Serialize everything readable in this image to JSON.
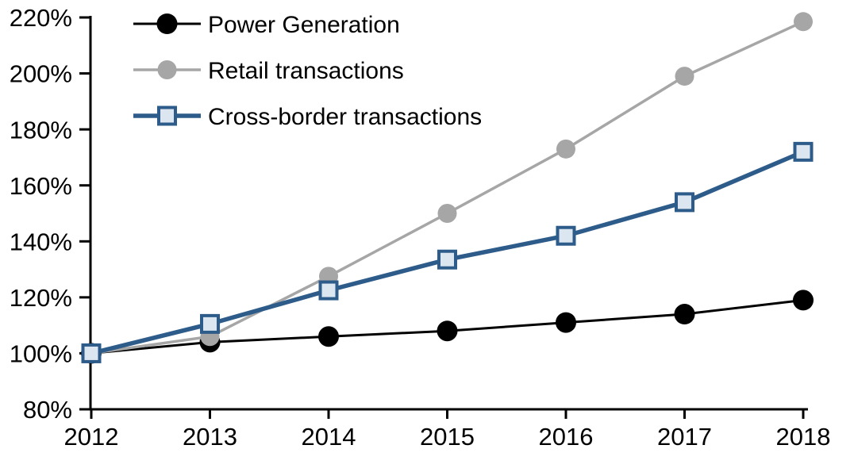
{
  "chart_data": {
    "type": "line",
    "title": "",
    "xlabel": "",
    "ylabel": "",
    "categories": [
      "2012",
      "2013",
      "2014",
      "2015",
      "2016",
      "2017",
      "2018"
    ],
    "series": [
      {
        "name": "Power Generation",
        "values": [
          100,
          104,
          106,
          108,
          111,
          114,
          119
        ],
        "line_color": "#000000",
        "line_width": 3,
        "marker": "circle",
        "marker_size": 26,
        "marker_fill": "#000000",
        "marker_stroke": "none",
        "marker_stroke_width": 0
      },
      {
        "name": "Retail transactions",
        "values": [
          100,
          106,
          127.5,
          150,
          173,
          199,
          218.5
        ],
        "line_color": "#a6a6a6",
        "line_width": 3.5,
        "marker": "circle",
        "marker_size": 24,
        "marker_fill": "#a6a6a6",
        "marker_stroke": "none",
        "marker_stroke_width": 0
      },
      {
        "name": "Cross-border transactions",
        "values": [
          100,
          110.5,
          122.5,
          133.5,
          142,
          154,
          172
        ],
        "line_color": "#2e5c8a",
        "line_width": 5.5,
        "marker": "square",
        "marker_size": 21,
        "marker_fill": "#dce6f1",
        "marker_stroke": "#2e5c8a",
        "marker_stroke_width": 4
      }
    ],
    "ylim": [
      80,
      220
    ],
    "ytick_step": 20,
    "ytick_values": [
      220,
      200,
      180,
      160,
      140,
      120,
      100,
      80
    ],
    "ytick_labels": [
      "220%",
      "200%",
      "180%",
      "160%",
      "140%",
      "120%",
      "100%",
      "80%"
    ],
    "ytick_format": "percent",
    "grid": false,
    "legend_position": "top-left",
    "axis_color": "#000000",
    "text_color": "#000000",
    "background": "#ffffff"
  }
}
